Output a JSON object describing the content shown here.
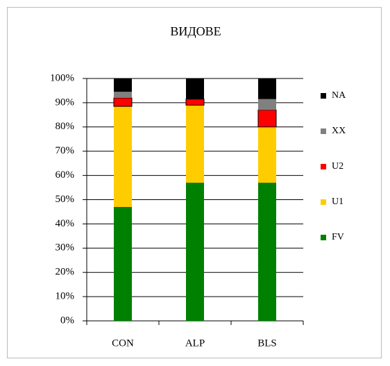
{
  "chart_data": {
    "type": "stacked_bar",
    "title": "ВИДОВЕ",
    "categories": [
      "CON",
      "ALP",
      "BLS"
    ],
    "series": [
      {
        "name": "FV",
        "color": "#008000",
        "values": [
          47,
          57,
          57
        ]
      },
      {
        "name": "U1",
        "color": "#ffcc00",
        "values": [
          41.5,
          32,
          23
        ]
      },
      {
        "name": "U2",
        "color": "#ff0000",
        "values": [
          3.5,
          2.5,
          7
        ]
      },
      {
        "name": "XX",
        "color": "#808080",
        "values": [
          2.5,
          0,
          4.5
        ]
      },
      {
        "name": "NA",
        "color": "#000000",
        "values": [
          5.5,
          8.5,
          8.5
        ]
      }
    ],
    "ylim": [
      0,
      100
    ],
    "yticks": [
      {
        "value": 0,
        "label": "0%"
      },
      {
        "value": 10,
        "label": "10%"
      },
      {
        "value": 20,
        "label": "20%"
      },
      {
        "value": 30,
        "label": "30%"
      },
      {
        "value": 40,
        "label": "40%"
      },
      {
        "value": 50,
        "label": "50%"
      },
      {
        "value": 60,
        "label": "60%"
      },
      {
        "value": 70,
        "label": "70%"
      },
      {
        "value": 80,
        "label": "80%"
      },
      {
        "value": 90,
        "label": "90%"
      },
      {
        "value": 100,
        "label": "100%"
      }
    ],
    "grid": true,
    "legend": "right"
  }
}
